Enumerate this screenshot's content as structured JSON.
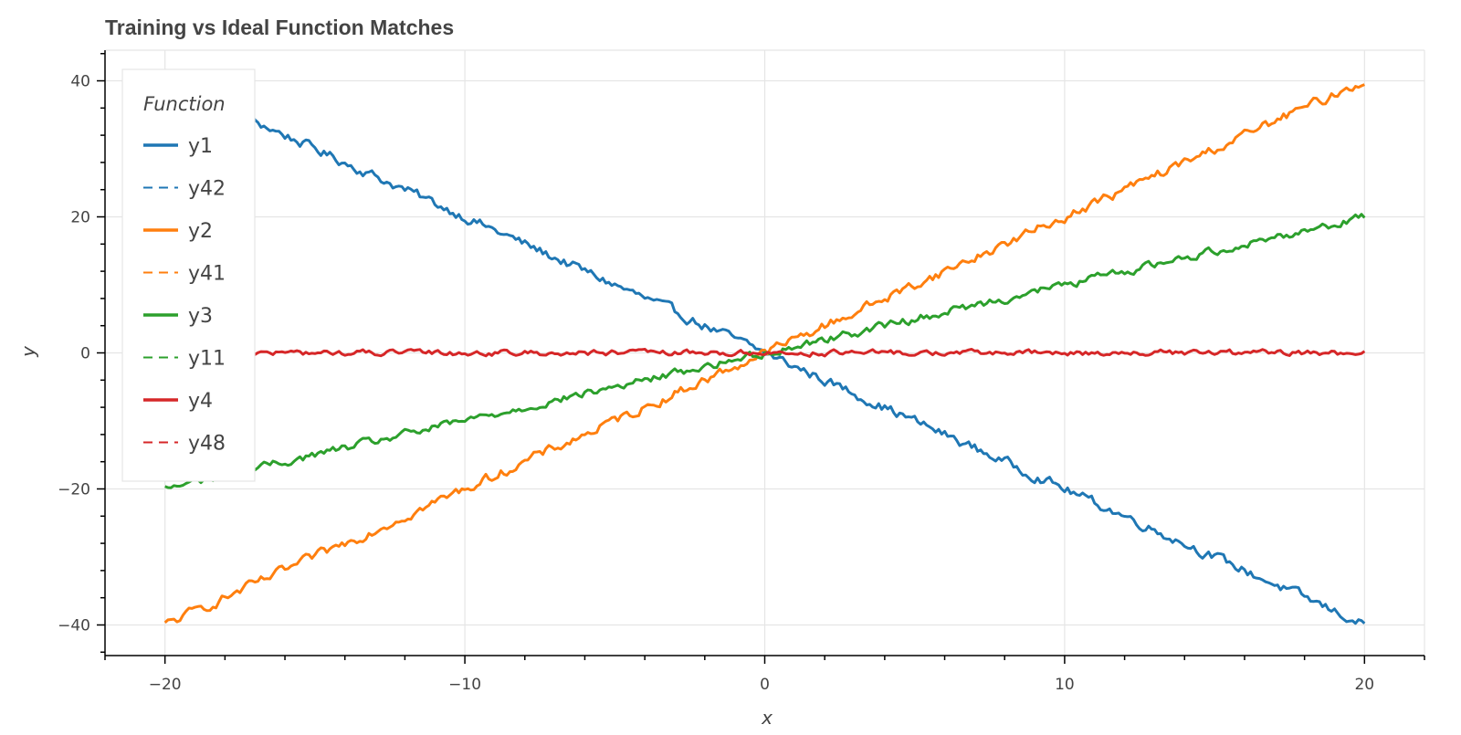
{
  "chart_data": {
    "type": "line",
    "title": "Training vs Ideal Function Matches",
    "xlabel": "x",
    "ylabel": "y",
    "xlim": [
      -22,
      22
    ],
    "ylim": [
      -44.5,
      44.5
    ],
    "x_ticks": [
      -20,
      -10,
      0,
      10,
      20
    ],
    "y_ticks": [
      -40,
      -20,
      0,
      20,
      40
    ],
    "x_tick_labels": [
      "−20",
      "−10",
      "0",
      "10",
      "20"
    ],
    "y_tick_labels": [
      "−40",
      "−20",
      "0",
      "20",
      "40"
    ],
    "grid": true,
    "legend": {
      "title": "Function",
      "placement": "top-left"
    },
    "x_range": [
      -20,
      20
    ],
    "series": [
      {
        "name": "y1",
        "slope": -2,
        "noise": 0.6,
        "color": "#1f77b4",
        "dash": "solid"
      },
      {
        "name": "y42",
        "slope": -2,
        "noise": 0,
        "color": "#1f77b4",
        "dash": "dashed"
      },
      {
        "name": "y2",
        "slope": 2,
        "noise": 0.6,
        "color": "#ff7f0e",
        "dash": "solid"
      },
      {
        "name": "y41",
        "slope": 2,
        "noise": 0,
        "color": "#ff7f0e",
        "dash": "dashed"
      },
      {
        "name": "y3",
        "slope": 1,
        "noise": 0.5,
        "color": "#2ca02c",
        "dash": "solid"
      },
      {
        "name": "y11",
        "slope": 1,
        "noise": 0,
        "color": "#2ca02c",
        "dash": "dashed"
      },
      {
        "name": "y4",
        "slope": 0,
        "noise": 0.35,
        "color": "#d62728",
        "dash": "solid"
      },
      {
        "name": "y48",
        "slope": 0,
        "noise": 0,
        "color": "#d62728",
        "dash": "dashed"
      }
    ]
  }
}
